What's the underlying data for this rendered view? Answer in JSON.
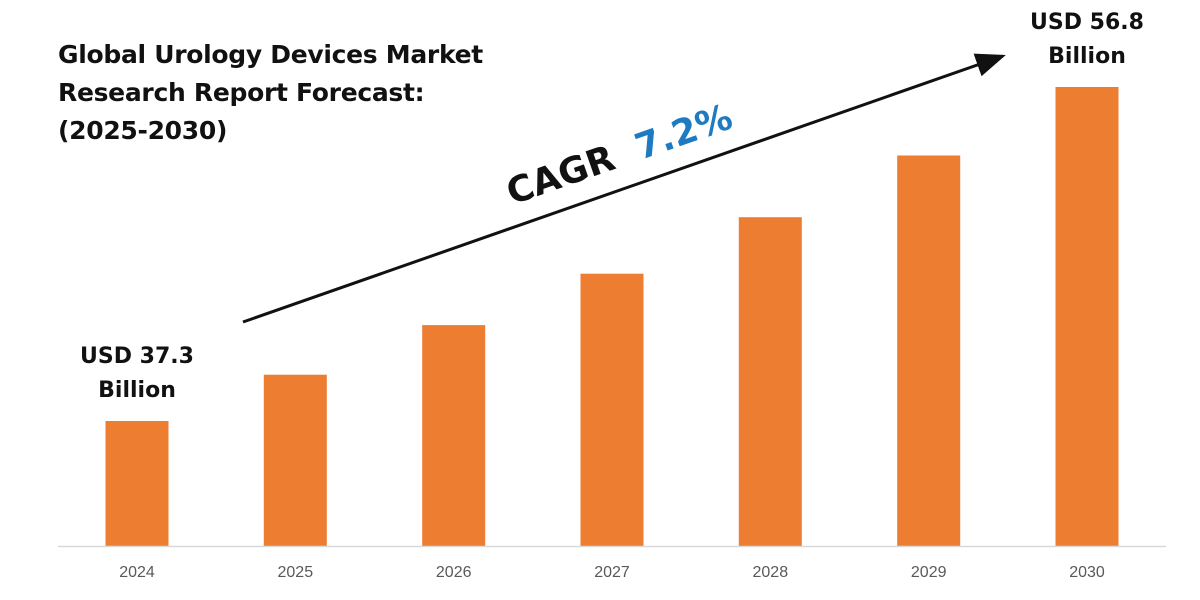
{
  "title_lines": [
    "Global Urology Devices Market",
    "Research Report Forecast:",
    "(2025-2030)"
  ],
  "cagr": {
    "label": "CAGR",
    "value": "7.2%",
    "value_color": "#1F7BC1"
  },
  "chart_data": {
    "type": "bar",
    "title": "Global Urology Devices Market Research Report Forecast: (2025-2030)",
    "categories": [
      "2024",
      "2025",
      "2026",
      "2027",
      "2028",
      "2029",
      "2030"
    ],
    "values": [
      37.3,
      40.0,
      42.9,
      45.9,
      49.2,
      52.8,
      56.8
    ],
    "unit": "USD Billion",
    "ylim": [
      30,
      60
    ],
    "xlabel": "",
    "ylabel": "",
    "bar_color": "#ED7D31",
    "annotations": [
      {
        "category": "2024",
        "lines": [
          "USD 37.3",
          "Billion"
        ]
      },
      {
        "category": "2030",
        "lines": [
          "USD 56.8",
          "Billion"
        ]
      }
    ]
  }
}
